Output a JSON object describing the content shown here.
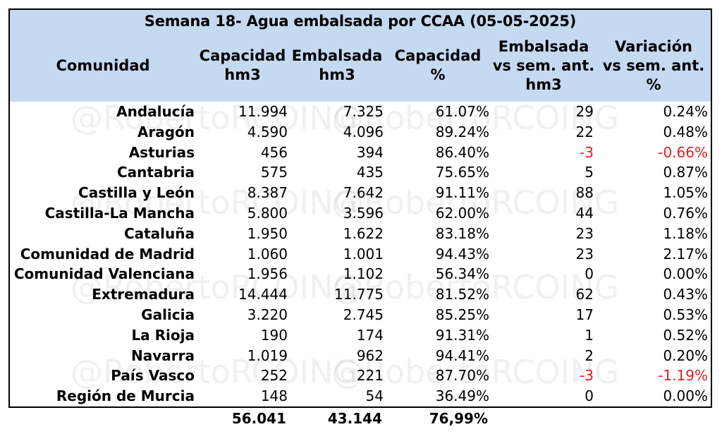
{
  "chart_data": {
    "type": "table",
    "title": "Semana 18- Agua embalsada por CCAA (05-05-2025)",
    "columns": [
      "Comunidad",
      "Capacidad hm3",
      "Embalsada hm3",
      "Capacidad %",
      "Embalsada vs sem. ant. hm3",
      "Variación vs sem. ant. %"
    ],
    "header_lines": [
      [
        "Comunidad"
      ],
      [
        "Capacidad",
        "hm3"
      ],
      [
        "Embalsada",
        "hm3"
      ],
      [
        "Capacidad",
        "%"
      ],
      [
        "Embalsada",
        "vs sem. ant.",
        "hm3"
      ],
      [
        "Variación",
        "vs sem. ant.",
        "%"
      ]
    ],
    "rows": [
      [
        "Andalucía",
        "11.994",
        "7.325",
        "61.07%",
        "29",
        "0.24%"
      ],
      [
        "Aragón",
        "4.590",
        "4.096",
        "89.24%",
        "22",
        "0.48%"
      ],
      [
        "Asturias",
        "456",
        "394",
        "86.40%",
        "-3",
        "-0.66%"
      ],
      [
        "Cantabria",
        "575",
        "435",
        "75.65%",
        "5",
        "0.87%"
      ],
      [
        "Castilla y León",
        "8.387",
        "7.642",
        "91.11%",
        "88",
        "1.05%"
      ],
      [
        "Castilla-La Mancha",
        "5.800",
        "3.596",
        "62.00%",
        "44",
        "0.76%"
      ],
      [
        "Cataluña",
        "1.950",
        "1.622",
        "83.18%",
        "23",
        "1.18%"
      ],
      [
        "Comunidad de Madrid",
        "1.060",
        "1.001",
        "94.43%",
        "23",
        "2.17%"
      ],
      [
        "Comunidad Valenciana",
        "1.956",
        "1.102",
        "56.34%",
        "0",
        "0.00%"
      ],
      [
        "Extremadura",
        "14.444",
        "11.775",
        "81.52%",
        "62",
        "0.43%"
      ],
      [
        "Galicia",
        "3.220",
        "2.745",
        "85.25%",
        "17",
        "0.53%"
      ],
      [
        "La Rioja",
        "190",
        "174",
        "91.31%",
        "1",
        "0.52%"
      ],
      [
        "Navarra",
        "1.019",
        "962",
        "94.41%",
        "2",
        "0.20%"
      ],
      [
        "País Vasco",
        "252",
        "221",
        "87.70%",
        "-3",
        "-1.19%"
      ],
      [
        "Región de Murcia",
        "148",
        "54",
        "36.49%",
        "0",
        "0.00%"
      ]
    ],
    "totals": [
      "56.041",
      "43.144",
      "76,99%"
    ]
  },
  "watermark": "@RobertoRCOING",
  "colors": {
    "header_bg": "#c5d9f1",
    "negative": "#e02020",
    "border": "#000000"
  }
}
